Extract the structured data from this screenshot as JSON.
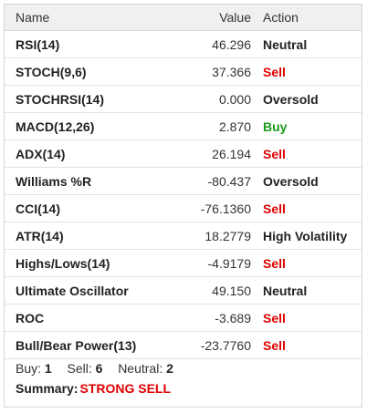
{
  "table": {
    "headers": {
      "name": "Name",
      "value": "Value",
      "action": "Action"
    },
    "rows": [
      {
        "name": "RSI(14)",
        "value": "46.296",
        "action": "Neutral",
        "status": "neutral"
      },
      {
        "name": "STOCH(9,6)",
        "value": "37.366",
        "action": "Sell",
        "status": "sell"
      },
      {
        "name": "STOCHRSI(14)",
        "value": "0.000",
        "action": "Oversold",
        "status": "over"
      },
      {
        "name": "MACD(12,26)",
        "value": "2.870",
        "action": "Buy",
        "status": "buy"
      },
      {
        "name": "ADX(14)",
        "value": "26.194",
        "action": "Sell",
        "status": "sell"
      },
      {
        "name": "Williams %R",
        "value": "-80.437",
        "action": "Oversold",
        "status": "over"
      },
      {
        "name": "CCI(14)",
        "value": "-76.1360",
        "action": "Sell",
        "status": "sell"
      },
      {
        "name": "ATR(14)",
        "value": "18.2779",
        "action": "High Volatility",
        "status": "high"
      },
      {
        "name": "Highs/Lows(14)",
        "value": "-4.9179",
        "action": "Sell",
        "status": "sell"
      },
      {
        "name": "Ultimate Oscillator",
        "value": "49.150",
        "action": "Neutral",
        "status": "neutral"
      },
      {
        "name": "ROC",
        "value": "-3.689",
        "action": "Sell",
        "status": "sell"
      },
      {
        "name": "Bull/Bear Power(13)",
        "value": "-23.7760",
        "action": "Sell",
        "status": "sell"
      }
    ]
  },
  "summary": {
    "buy_label": "Buy:",
    "buy_count": "1",
    "sell_label": "Sell:",
    "sell_count": "6",
    "neutral_label": "Neutral:",
    "neutral_count": "2",
    "summary_label": "Summary:",
    "summary_value": "STRONG SELL"
  },
  "colors": {
    "sell": "#e00000",
    "buy": "#1a9b1a",
    "header_bg": "#f0f0f0",
    "border": "#d5d5d5"
  }
}
